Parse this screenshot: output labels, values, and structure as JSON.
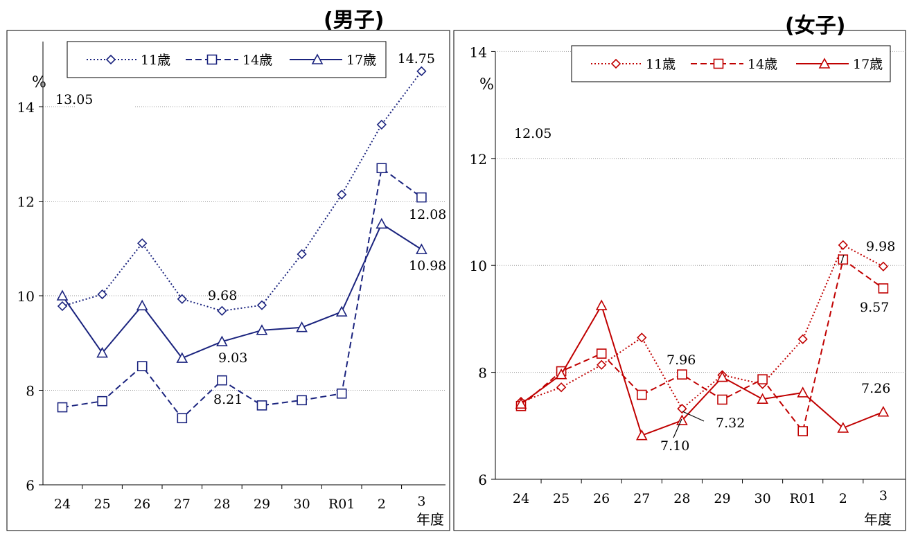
{
  "chart_data": [
    {
      "type": "line",
      "title": "(男子)",
      "xlabel": "年度",
      "ylabel": "%",
      "ylim": [
        6,
        15
      ],
      "yticks": [
        6,
        8,
        10,
        12,
        14
      ],
      "categories": [
        "24",
        "25",
        "26",
        "27",
        "28",
        "29",
        "30",
        "R01",
        "2",
        "3"
      ],
      "grid": "horizontal, dotted",
      "legend_position": "top",
      "series": [
        {
          "name": "11歳",
          "color": "#1a237e",
          "line": "dotted",
          "marker": "diamond",
          "values": [
            9.78,
            10.03,
            11.11,
            9.93,
            9.68,
            9.8,
            10.88,
            12.14,
            13.62,
            14.75
          ]
        },
        {
          "name": "14歳",
          "color": "#1a237e",
          "line": "dashed",
          "marker": "square",
          "values": [
            7.64,
            7.77,
            8.51,
            7.41,
            8.21,
            7.68,
            7.79,
            7.93,
            12.7,
            12.08
          ]
        },
        {
          "name": "17歳",
          "color": "#1a237e",
          "line": "solid",
          "marker": "triangle",
          "values": [
            10.0,
            8.79,
            9.79,
            8.68,
            9.03,
            9.27,
            9.33,
            9.66,
            11.52,
            10.98
          ]
        }
      ],
      "annotations": [
        "13.05",
        "14.75",
        "12.08",
        "10.98",
        "9.68",
        "9.03",
        "8.21"
      ]
    },
    {
      "type": "line",
      "title": "(女子)",
      "xlabel": "年度",
      "ylabel": "%",
      "ylim": [
        6,
        14
      ],
      "yticks": [
        6,
        8,
        10,
        12,
        14
      ],
      "categories": [
        "24",
        "25",
        "26",
        "27",
        "28",
        "29",
        "30",
        "R01",
        "2",
        "3"
      ],
      "grid": "horizontal, dotted",
      "legend_position": "top",
      "series": [
        {
          "name": "11歳",
          "color": "#c00000",
          "line": "dotted",
          "marker": "diamond",
          "values": [
            7.45,
            7.72,
            8.14,
            8.65,
            7.32,
            7.95,
            7.78,
            8.62,
            10.38,
            9.98
          ]
        },
        {
          "name": "14歳",
          "color": "#c00000",
          "line": "dashed",
          "marker": "square",
          "values": [
            7.37,
            8.02,
            8.35,
            7.58,
            7.96,
            7.49,
            7.87,
            6.9,
            10.11,
            9.57
          ]
        },
        {
          "name": "17歳",
          "color": "#c00000",
          "line": "solid",
          "marker": "triangle",
          "values": [
            7.41,
            7.96,
            9.25,
            6.82,
            7.1,
            7.91,
            7.5,
            7.62,
            6.96,
            7.26
          ]
        }
      ],
      "annotations": [
        "12.05",
        "9.98",
        "9.57",
        "7.96",
        "7.32",
        "7.10",
        "7.26"
      ]
    }
  ]
}
